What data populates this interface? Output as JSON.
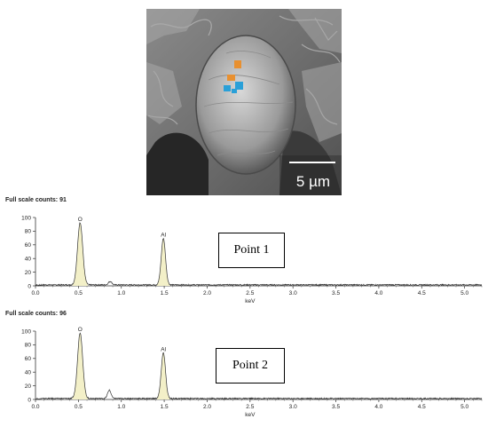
{
  "sem": {
    "scale_bar_label": "5 µm"
  },
  "chart_data": [
    {
      "type": "line",
      "title": "Full scale counts: 91",
      "box_label": "Point 1",
      "xlabel": "keV",
      "ylabel": "",
      "xlim": [
        0,
        5.2
      ],
      "ylim": [
        0,
        100
      ],
      "x_ticks": [
        "0.0",
        "0.5",
        "1.0",
        "1.5",
        "2.0",
        "2.5",
        "3.0",
        "3.5",
        "4.0",
        "4.5",
        "5.0"
      ],
      "y_ticks": [
        "0",
        "20",
        "40",
        "60",
        "80",
        "100"
      ],
      "peaks": [
        {
          "label": "O",
          "x": 0.52,
          "y": 91,
          "width": 0.03
        },
        {
          "label": "Al",
          "x": 1.49,
          "y": 68,
          "width": 0.025
        }
      ],
      "minor_peaks": [
        {
          "x": 0.87,
          "y": 5,
          "width": 0.02
        }
      ],
      "baseline": 1.5
    },
    {
      "type": "line",
      "title": "Full scale counts: 96",
      "box_label": "Point 2",
      "xlabel": "keV",
      "ylabel": "",
      "xlim": [
        0,
        5.2
      ],
      "ylim": [
        0,
        100
      ],
      "x_ticks": [
        "0.0",
        "0.5",
        "1.0",
        "1.5",
        "2.0",
        "2.5",
        "3.0",
        "3.5",
        "4.0",
        "4.5",
        "5.0"
      ],
      "y_ticks": [
        "0",
        "20",
        "40",
        "60",
        "80",
        "100"
      ],
      "peaks": [
        {
          "label": "O",
          "x": 0.52,
          "y": 96,
          "width": 0.03
        },
        {
          "label": "Al",
          "x": 1.49,
          "y": 67,
          "width": 0.025
        }
      ],
      "minor_peaks": [
        {
          "x": 0.86,
          "y": 12,
          "width": 0.02
        }
      ],
      "baseline": 1.5
    }
  ]
}
